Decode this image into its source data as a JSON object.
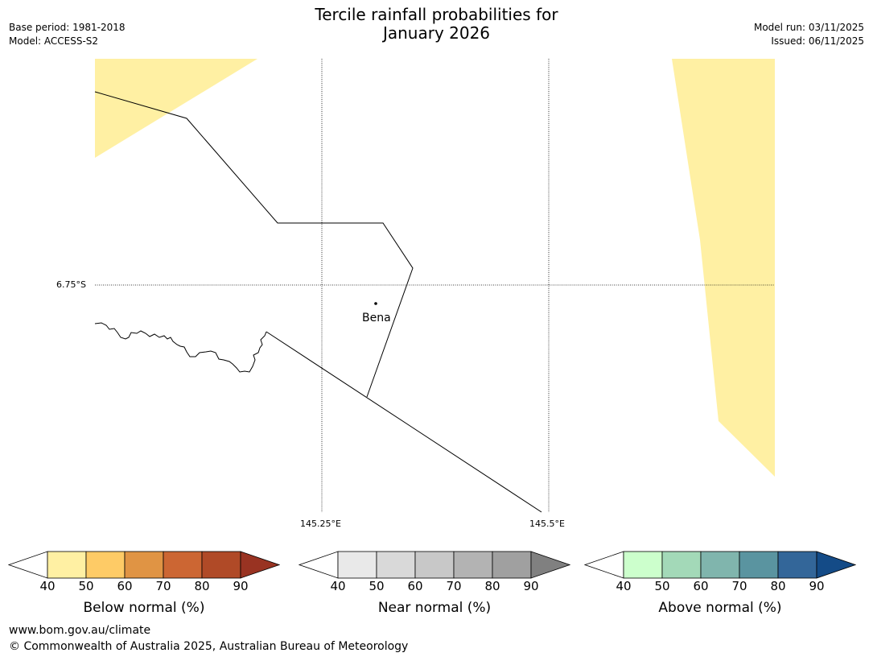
{
  "header": {
    "title_line1": "Tercile rainfall probabilities for",
    "title_line2": "January 2026",
    "base_period": "Base period: 1981-2018",
    "model": "Model: ACCESS-S2",
    "model_run": "Model run: 03/11/2025",
    "issued": "Issued: 06/11/2025"
  },
  "map": {
    "lat_label": "6.75°S",
    "lon_labels": [
      "145.25°E",
      "145.5°E"
    ],
    "place": {
      "name": "Bena"
    },
    "colors": {
      "fill": "#fff0a3",
      "border": "#000000",
      "grid": "#000000"
    }
  },
  "colorbars": [
    {
      "name": "below-normal",
      "label": "Below normal (%)",
      "ticks": [
        "40",
        "50",
        "60",
        "70",
        "80",
        "90"
      ],
      "colors": [
        "#ffffff",
        "#fff0a3",
        "#fecb66",
        "#e09444",
        "#cc6633",
        "#b04a27",
        "#993322"
      ]
    },
    {
      "name": "near-normal",
      "label": "Near normal (%)",
      "ticks": [
        "40",
        "50",
        "60",
        "70",
        "80",
        "90"
      ],
      "colors": [
        "#ffffff",
        "#e9e9e9",
        "#d9d9d9",
        "#c8c8c8",
        "#b3b3b3",
        "#a0a0a0",
        "#808080"
      ]
    },
    {
      "name": "above-normal",
      "label": "Above normal (%)",
      "ticks": [
        "40",
        "50",
        "60",
        "70",
        "80",
        "90"
      ],
      "colors": [
        "#ffffff",
        "#ccffcc",
        "#a3d9b8",
        "#80b5ad",
        "#5a94a0",
        "#336699",
        "#144b87"
      ]
    }
  ],
  "footer": {
    "url": "www.bom.gov.au/climate",
    "copyright": "© Commonwealth of Australia 2025, Australian Bureau of Meteorology"
  }
}
